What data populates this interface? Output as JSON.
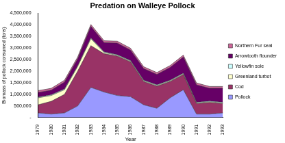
{
  "chart_data": {
    "type": "area",
    "title": "Predation on Walleye Pollock",
    "x_label": "Year",
    "y_label": "Biomass of pollock consumed (tons)",
    "categories": [
      "1979",
      "1980",
      "1981",
      "1982",
      "1983",
      "1984",
      "1985",
      "1986",
      "1987",
      "1988",
      "1989",
      "1990",
      "1991",
      "1992",
      "1993"
    ],
    "series": [
      {
        "name": "Pollock",
        "color": "#9999FF",
        "values": [
          200000,
          150000,
          200000,
          500000,
          1300000,
          1100000,
          950000,
          900000,
          550000,
          400000,
          850000,
          1200000,
          150000,
          150000,
          200000
        ]
      },
      {
        "name": "Cod",
        "color": "#993366",
        "values": [
          350000,
          550000,
          800000,
          1500000,
          1800000,
          1650000,
          1700000,
          1500000,
          1000000,
          950000,
          700000,
          650000,
          450000,
          500000,
          400000
        ]
      },
      {
        "name": "Greenland turbot",
        "color": "#FFFFCC",
        "values": [
          300000,
          250000,
          200000,
          200000,
          300000,
          50000,
          30000,
          30000,
          30000,
          30000,
          30000,
          30000,
          30000,
          30000,
          30000
        ]
      },
      {
        "name": "Yellowfin sole",
        "color": "#CCFFFF",
        "values": [
          30000,
          30000,
          30000,
          30000,
          30000,
          30000,
          30000,
          30000,
          30000,
          30000,
          30000,
          30000,
          30000,
          30000,
          30000
        ]
      },
      {
        "name": "Arrowtooth flounder",
        "color": "#660066",
        "values": [
          200000,
          200000,
          300000,
          300000,
          500000,
          400000,
          500000,
          450000,
          500000,
          450000,
          550000,
          700000,
          750000,
          550000,
          600000
        ]
      },
      {
        "name": "Northern Fur seal",
        "color": "#CC6699",
        "values": [
          80000,
          80000,
          80000,
          80000,
          80000,
          80000,
          80000,
          80000,
          80000,
          80000,
          80000,
          80000,
          80000,
          80000,
          80000
        ]
      }
    ],
    "ylim": [
      0,
      4500000
    ],
    "yticks": [
      {
        "value": 0,
        "label": "-"
      },
      {
        "value": 500000,
        "label": "500,000"
      },
      {
        "value": 1000000,
        "label": "1,000,000"
      },
      {
        "value": 1500000,
        "label": "1,500,000"
      },
      {
        "value": 2000000,
        "label": "2,000,000"
      },
      {
        "value": 2500000,
        "label": "2,500,000"
      },
      {
        "value": 3000000,
        "label": "3,000,000"
      },
      {
        "value": 3500000,
        "label": "3,500,000"
      },
      {
        "value": 4000000,
        "label": "4,000,000"
      },
      {
        "value": 4500000,
        "label": "4,500,000"
      }
    ],
    "stacked": true,
    "grid": false,
    "legend": "right"
  }
}
